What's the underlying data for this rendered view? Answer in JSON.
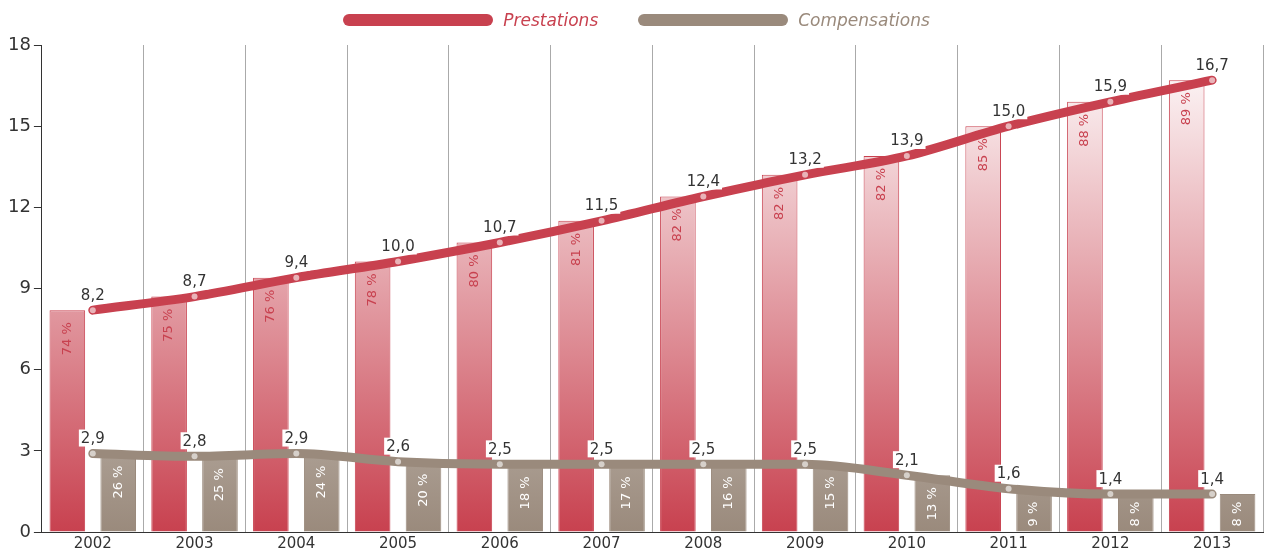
{
  "chart_data": {
    "type": "bar",
    "categories": [
      "2002",
      "2003",
      "2004",
      "2005",
      "2006",
      "2007",
      "2008",
      "2009",
      "2010",
      "2011",
      "2012",
      "2013"
    ],
    "series": [
      {
        "color": "#c8414f",
        "values": [
          8.2,
          8.7,
          9.4,
          10.0,
          10.7,
          11.5,
          12.4,
          13.2,
          13.9,
          15.0,
          15.9,
          16.7
        ]
      },
      {
        "color": "#9a8a7c",
        "values": [
          2.9,
          2.8,
          2.9,
          2.6,
          2.5,
          2.5,
          2.5,
          2.5,
          2.1,
          1.6,
          1.4,
          1.4
        ]
      },
      {
        "type": "line",
        "name": "Prestations",
        "color": "#c8414f",
        "values": [
          8.2,
          8.7,
          9.4,
          10.0,
          10.7,
          11.5,
          12.4,
          13.2,
          13.9,
          15.0,
          15.9,
          16.7
        ],
        "value_labels": [
          "8,2",
          "8,7",
          "9,4",
          "10,0",
          "10,7",
          "11,5",
          "12,4",
          "13,2",
          "13,9",
          "15,0",
          "15,9",
          "16,7"
        ]
      },
      {
        "type": "line",
        "name": "Compensations",
        "color": "#9a8a7c",
        "values": [
          2.9,
          2.8,
          2.9,
          2.6,
          2.5,
          2.5,
          2.5,
          2.5,
          2.1,
          1.6,
          1.4,
          1.4
        ],
        "value_labels": [
          "2,9",
          "2,8",
          "2,9",
          "2,6",
          "2,5",
          "2,5",
          "2,5",
          "2,5",
          "2,1",
          "1,6",
          "1,4",
          "1,4"
        ]
      }
    ],
    "annotations": [
      {
        "text": "74 %",
        "x": "2002",
        "y": 8.2
      },
      {
        "text": "75 %",
        "x": "2003",
        "y": 8.7
      },
      {
        "text": "76 %",
        "x": "2004",
        "y": 9.4
      },
      {
        "text": "78 %",
        "x": "2005",
        "y": 10.0
      },
      {
        "text": "80 %",
        "x": "2006",
        "y": 10.7
      },
      {
        "text": "81 %",
        "x": "2007",
        "y": 11.5
      },
      {
        "text": "82 %",
        "x": "2008",
        "y": 12.4
      },
      {
        "text": "82 %",
        "x": "2009",
        "y": 13.2
      },
      {
        "text": "82 %",
        "x": "2010",
        "y": 13.9
      },
      {
        "text": "85 %",
        "x": "2011",
        "y": 15.0
      },
      {
        "text": "88 %",
        "x": "2012",
        "y": 15.9
      },
      {
        "text": "89 %",
        "x": "2013",
        "y": 16.7
      },
      {
        "text": "26 %",
        "x": "2002",
        "y": 2.9
      },
      {
        "text": "25 %",
        "x": "2003",
        "y": 2.8
      },
      {
        "text": "24 %",
        "x": "2004",
        "y": 2.9
      },
      {
        "text": "20 %",
        "x": "2005",
        "y": 2.6
      },
      {
        "text": "18 %",
        "x": "2006",
        "y": 2.5
      },
      {
        "text": "17 %",
        "x": "2007",
        "y": 2.5
      },
      {
        "text": "16 %",
        "x": "2008",
        "y": 2.5
      },
      {
        "text": "15 %",
        "x": "2009",
        "y": 2.5
      },
      {
        "text": "13 %",
        "x": "2010",
        "y": 2.1
      },
      {
        "text": "9 %",
        "x": "2011",
        "y": 1.6
      },
      {
        "text": "8 %",
        "x": "2012",
        "y": 1.4
      },
      {
        "text": "8 %",
        "x": "2013",
        "y": 1.4
      }
    ],
    "ylim": [
      0,
      18
    ],
    "yticks": [
      0,
      3,
      6,
      9,
      12,
      15,
      18
    ],
    "grid": "x",
    "legend": "top",
    "marker": "circle"
  }
}
